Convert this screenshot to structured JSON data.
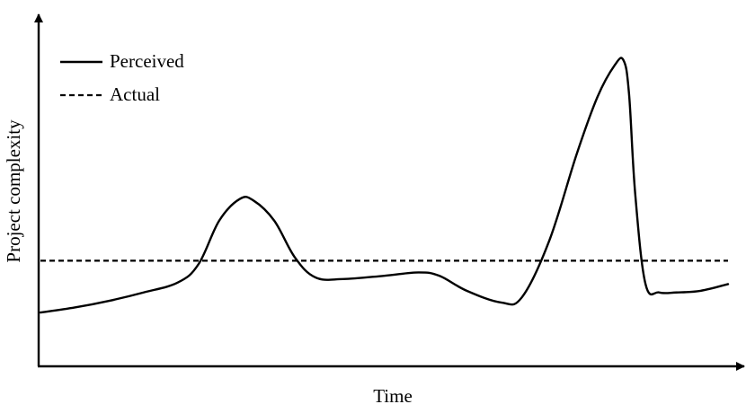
{
  "chart_data": {
    "type": "line",
    "title": "",
    "xlabel": "Time",
    "ylabel": "Project complexity",
    "xlim": [
      0,
      100
    ],
    "ylim": [
      0,
      100
    ],
    "ticks": "none",
    "grid": false,
    "legend_position": "top-left",
    "series": [
      {
        "name": "Perceived",
        "style": "solid",
        "color": "#000000",
        "x": [
          0,
          5,
          10,
          15,
          20,
          23,
          26,
          29,
          31,
          34,
          37,
          40,
          44,
          50,
          55,
          58,
          62,
          67,
          70,
          74,
          78,
          81,
          83.5,
          84.8,
          85.6,
          86.5,
          88,
          90,
          92.5,
          96,
          100
        ],
        "y": [
          14.5,
          16,
          18,
          20.5,
          23.5,
          29,
          42,
          48.5,
          48,
          42,
          31,
          25,
          24.5,
          25.5,
          26.5,
          25.5,
          21,
          17.5,
          19,
          36,
          62,
          79,
          88.5,
          90,
          80,
          50,
          23,
          20.5,
          20.5,
          21,
          23
        ]
      },
      {
        "name": "Actual",
        "style": "dashed",
        "color": "#000000",
        "x": [
          0,
          100
        ],
        "y": [
          30,
          30
        ]
      }
    ]
  }
}
